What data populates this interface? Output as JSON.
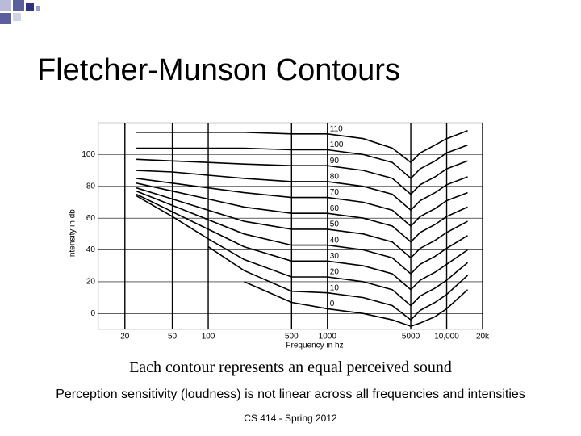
{
  "slide": {
    "title": "Fletcher-Munson Contours",
    "caption": "Each contour represents an equal perceived sound",
    "body": "Perception sensitivity (loudness) is not linear across all frequencies and intensities",
    "footer": "CS 414 - Spring 2012"
  },
  "chart_data": {
    "type": "line",
    "xlabel": "Frequency in hz",
    "ylabel": "Intensity in db",
    "xscale": "log",
    "grid": true,
    "color": "#000000",
    "x": [
      25,
      50,
      100,
      200,
      500,
      1000,
      2000,
      3500,
      5000,
      6000,
      8000,
      10000,
      15000
    ],
    "xlim": [
      12,
      20000
    ],
    "xticks": [
      20,
      50,
      100,
      500,
      1000,
      5000,
      {
        "value": 10000,
        "label": "10,000"
      },
      {
        "value": 20000,
        "label": "20k"
      }
    ],
    "ylim": [
      -10,
      120
    ],
    "yticks": [
      0,
      20,
      40,
      60,
      80,
      100
    ],
    "series": [
      {
        "name": "110",
        "values": [
          114,
          114,
          114,
          114,
          113,
          113,
          110,
          104,
          95,
          101,
          106,
          110,
          115
        ]
      },
      {
        "name": "100",
        "values": [
          104,
          104,
          104,
          104,
          103,
          103,
          100,
          95,
          85,
          91,
          96,
          101,
          106
        ]
      },
      {
        "name": "90",
        "values": [
          97,
          96,
          95,
          94,
          93,
          93,
          90,
          85,
          75,
          81,
          86,
          91,
          96
        ]
      },
      {
        "name": "80",
        "values": [
          90,
          89,
          87,
          85,
          83,
          83,
          80,
          75,
          65,
          71,
          76,
          81,
          86
        ]
      },
      {
        "name": "70",
        "values": [
          85,
          82,
          79,
          76,
          73,
          73,
          70,
          65,
          55,
          61,
          66,
          71,
          76
        ]
      },
      {
        "name": "60",
        "values": [
          82,
          77,
          72,
          67,
          63,
          63,
          60,
          55,
          45,
          51,
          56,
          61,
          67
        ]
      },
      {
        "name": "50",
        "values": [
          79,
          72,
          65,
          58,
          53,
          53,
          50,
          45,
          35,
          41,
          46,
          51,
          58
        ]
      },
      {
        "name": "40",
        "values": [
          77,
          68,
          59,
          50,
          43,
          43,
          40,
          35,
          25,
          31,
          36,
          41,
          49
        ]
      },
      {
        "name": "30",
        "values": [
          75,
          64,
          53,
          42,
          33,
          33,
          30,
          25,
          15,
          21,
          26,
          31,
          40
        ]
      },
      {
        "name": "20",
        "values": [
          74,
          61,
          47,
          34,
          23,
          23,
          20,
          15,
          5,
          11,
          16,
          21,
          32
        ]
      },
      {
        "name": "10",
        "values": [
          null,
          null,
          42,
          27,
          14,
          13,
          10,
          5,
          -4,
          2,
          7,
          12,
          24
        ]
      },
      {
        "name": "0",
        "values": [
          null,
          null,
          null,
          20,
          7,
          3,
          0,
          -4,
          -8,
          -6,
          -2,
          3,
          15
        ]
      }
    ]
  }
}
